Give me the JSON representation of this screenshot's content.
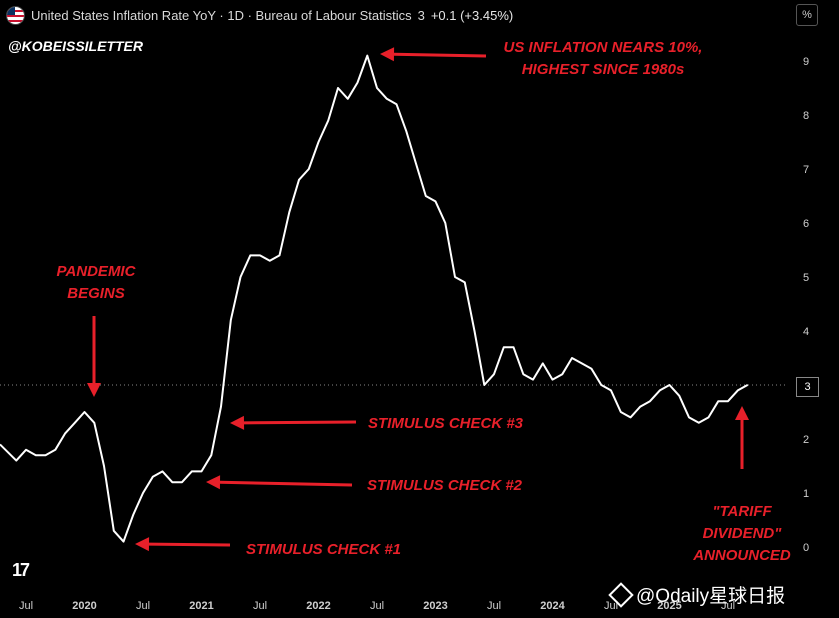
{
  "header": {
    "title": "United States Inflation Rate YoY · 1D · Bureau of Labour Statistics",
    "last_value": "3",
    "change": "+0.1 (+3.45%)",
    "percent_button": "%"
  },
  "handle": "@KOBEISSILETTER",
  "annotations": {
    "us_inflation_line1": "US INFLATION NEARS 10%,",
    "us_inflation_line2": "HIGHEST SINCE 1980s",
    "pandemic_line1": "PANDEMIC",
    "pandemic_line2": "BEGINS",
    "stimulus3": "STIMULUS CHECK #3",
    "stimulus2": "STIMULUS CHECK #2",
    "stimulus1": "STIMULUS CHECK #1",
    "tariff_line1": "\"TARIFF",
    "tariff_line2": "DIVIDEND\"",
    "tariff_line3": "ANNOUNCED"
  },
  "watermark": "@Odaily星球日报",
  "last_value_label": "3",
  "colors": {
    "background": "#000000",
    "line": "#ffffff",
    "annotation": "#e8202a",
    "text": "#d9d9d9"
  },
  "chart_data": {
    "type": "line",
    "title": "United States Inflation Rate YoY",
    "x_ticks": [
      "Jul",
      "2020",
      "Jul",
      "2021",
      "Jul",
      "2022",
      "Jul",
      "2023",
      "Jul",
      "2024",
      "Jul",
      "2025",
      "Jul"
    ],
    "y_ticks": [
      "0",
      "1",
      "2",
      "3",
      "4",
      "5",
      "6",
      "7",
      "8",
      "9"
    ],
    "ylim": [
      -0.3,
      9.8
    ],
    "reference_line": 3,
    "series": [
      {
        "x": [
          "2019-06",
          "2019-07",
          "2019-08",
          "2019-09",
          "2019-10",
          "2019-11",
          "2019-12",
          "2020-01",
          "2020-02",
          "2020-03",
          "2020-04",
          "2020-05",
          "2020-06",
          "2020-07",
          "2020-08",
          "2020-09",
          "2020-10",
          "2020-11",
          "2020-12",
          "2021-01",
          "2021-02",
          "2021-03",
          "2021-04",
          "2021-05",
          "2021-06",
          "2021-07",
          "2021-08",
          "2021-09",
          "2021-10",
          "2021-11",
          "2021-12",
          "2022-01",
          "2022-02",
          "2022-03",
          "2022-04",
          "2022-05",
          "2022-06",
          "2022-07",
          "2022-08",
          "2022-09",
          "2022-10",
          "2022-11",
          "2022-12",
          "2023-01",
          "2023-02",
          "2023-03",
          "2023-04",
          "2023-05",
          "2023-06",
          "2023-07",
          "2023-08",
          "2023-09",
          "2023-10",
          "2023-11",
          "2023-12",
          "2024-01",
          "2024-02",
          "2024-03",
          "2024-04",
          "2024-05",
          "2024-06",
          "2024-07",
          "2024-08",
          "2024-09",
          "2024-10",
          "2024-11",
          "2024-12",
          "2025-01",
          "2025-02",
          "2025-03",
          "2025-04",
          "2025-05",
          "2025-06",
          "2025-07",
          "2025-08",
          "2025-09"
        ],
        "values": [
          1.6,
          1.8,
          1.7,
          1.7,
          1.8,
          2.1,
          2.3,
          2.5,
          2.3,
          1.5,
          0.3,
          0.1,
          0.6,
          1.0,
          1.3,
          1.4,
          1.2,
          1.2,
          1.4,
          1.4,
          1.7,
          2.6,
          4.2,
          5.0,
          5.4,
          5.4,
          5.3,
          5.4,
          6.2,
          6.8,
          7.0,
          7.5,
          7.9,
          8.5,
          8.3,
          8.6,
          9.1,
          8.5,
          8.3,
          8.2,
          7.7,
          7.1,
          6.5,
          6.4,
          6.0,
          5.0,
          4.9,
          4.0,
          3.0,
          3.2,
          3.7,
          3.7,
          3.2,
          3.1,
          3.4,
          3.1,
          3.2,
          3.5,
          3.4,
          3.3,
          3.0,
          2.9,
          2.5,
          2.4,
          2.6,
          2.7,
          2.9,
          3.0,
          2.8,
          2.4,
          2.3,
          2.4,
          2.7,
          2.7,
          2.9,
          3.0
        ]
      }
    ]
  }
}
